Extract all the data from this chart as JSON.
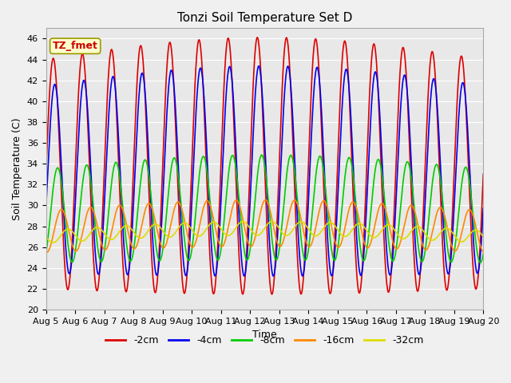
{
  "title": "Tonzi Soil Temperature Set D",
  "xlabel": "Time",
  "ylabel": "Soil Temperature (C)",
  "ylim": [
    20,
    47
  ],
  "yticks": [
    20,
    22,
    24,
    26,
    28,
    30,
    32,
    34,
    36,
    38,
    40,
    42,
    44,
    46
  ],
  "start_day": 5,
  "end_day": 20,
  "n_days": 15,
  "series": [
    {
      "label": "-2cm",
      "color": "#dd0000",
      "amplitude": 11.0,
      "mean": 33.0,
      "phase_shift": 0.0,
      "phase_lag": 0.0
    },
    {
      "label": "-4cm",
      "color": "#0000ee",
      "amplitude": 9.0,
      "mean": 32.5,
      "phase_shift": 0.05,
      "phase_lag": 0.05
    },
    {
      "label": "-8cm",
      "color": "#00cc00",
      "amplitude": 4.5,
      "mean": 29.0,
      "phase_shift": 0.15,
      "phase_lag": 0.15
    },
    {
      "label": "-16cm",
      "color": "#ff8800",
      "amplitude": 2.0,
      "mean": 27.5,
      "phase_shift": 0.28,
      "phase_lag": 0.28
    },
    {
      "label": "-32cm",
      "color": "#dddd00",
      "amplitude": 0.6,
      "mean": 27.0,
      "phase_shift": 0.5,
      "phase_lag": 0.5
    }
  ],
  "annotation_text": "TZ_fmet",
  "annotation_color": "#cc0000",
  "annotation_bg": "#ffffcc",
  "annotation_border": "#999900",
  "plot_bg": "#e8e8e8",
  "fig_bg": "#f0f0f0",
  "title_fontsize": 11,
  "axis_fontsize": 8,
  "legend_fontsize": 9,
  "linewidth": 1.2
}
